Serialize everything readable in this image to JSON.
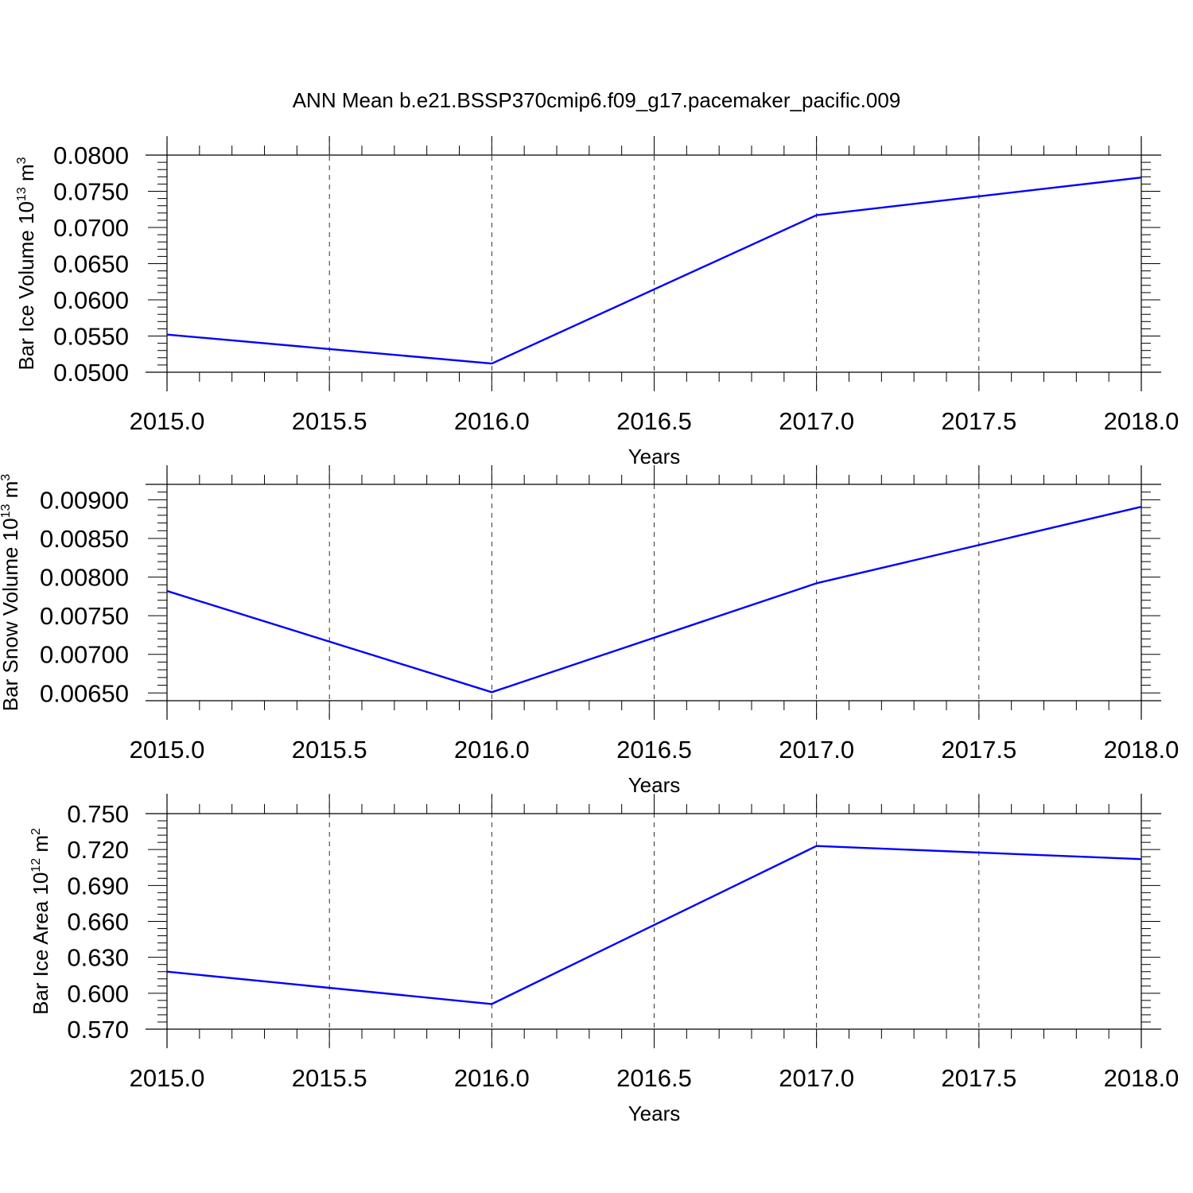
{
  "title": "ANN Mean b.e21.BSSP370cmip6.f09_g17.pacemaker_pacific.009",
  "chart_data": [
    {
      "type": "line",
      "ylabel": {
        "base": "Bar Ice Volume 10",
        "exp": "13",
        "unit": " m",
        "unit_exp": "3"
      },
      "xlabel": "Years",
      "xlim": [
        2015.0,
        2018.0
      ],
      "ylim": [
        0.05,
        0.08
      ],
      "yticks": [
        "0.0500",
        "0.0550",
        "0.0600",
        "0.0650",
        "0.0700",
        "0.0750",
        "0.0800"
      ],
      "xticks": [
        "2015.0",
        "2015.5",
        "2016.0",
        "2016.5",
        "2017.0",
        "2017.5",
        "2018.0"
      ],
      "series": [
        {
          "color": "#0000ff",
          "x": [
            2015,
            2016,
            2017,
            2018
          ],
          "y": [
            0.0552,
            0.0512,
            0.0717,
            0.0769
          ]
        }
      ]
    },
    {
      "type": "line",
      "ylabel": {
        "base": "Bar Snow Volume 10",
        "exp": "13",
        "unit": " m",
        "unit_exp": "3"
      },
      "xlabel": "Years",
      "xlim": [
        2015.0,
        2018.0
      ],
      "ylim": [
        0.0064,
        0.0092
      ],
      "yticks": [
        "0.00650",
        "0.00700",
        "0.00750",
        "0.00800",
        "0.00850",
        "0.00900"
      ],
      "xticks": [
        "2015.0",
        "2015.5",
        "2016.0",
        "2016.5",
        "2017.0",
        "2017.5",
        "2018.0"
      ],
      "series": [
        {
          "color": "#0000ff",
          "x": [
            2015,
            2016,
            2017,
            2018
          ],
          "y": [
            0.00782,
            0.00651,
            0.00792,
            0.00891
          ]
        }
      ]
    },
    {
      "type": "line",
      "ylabel": {
        "base": "Bar Ice Area 10",
        "exp": "12",
        "unit": " m",
        "unit_exp": "2"
      },
      "xlabel": "Years",
      "xlim": [
        2015.0,
        2018.0
      ],
      "ylim": [
        0.57,
        0.75
      ],
      "yticks": [
        "0.570",
        "0.600",
        "0.630",
        "0.660",
        "0.690",
        "0.720",
        "0.750"
      ],
      "xticks": [
        "2015.0",
        "2015.5",
        "2016.0",
        "2016.5",
        "2017.0",
        "2017.5",
        "2018.0"
      ],
      "series": [
        {
          "color": "#0000ff",
          "x": [
            2015,
            2016,
            2017,
            2018
          ],
          "y": [
            0.618,
            0.591,
            0.723,
            0.712
          ]
        }
      ]
    }
  ]
}
